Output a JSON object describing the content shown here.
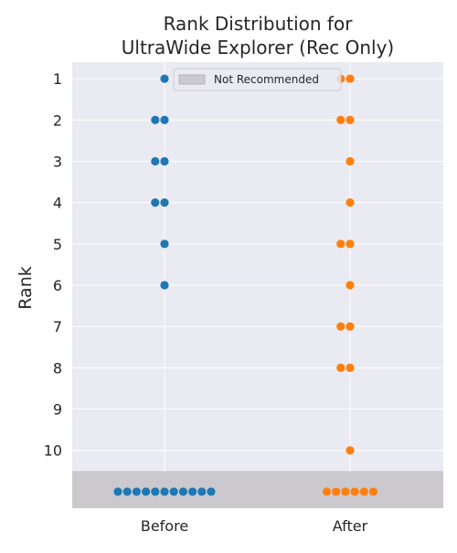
{
  "chart_data": {
    "type": "scatter",
    "style": "swarm",
    "title": [
      "Rank Distribution for",
      "UltraWide Explorer (Rec Only)"
    ],
    "xlabel": "",
    "ylabel": "Rank",
    "categories": [
      "Before",
      "After"
    ],
    "yticks": [
      "1",
      "2",
      "3",
      "4",
      "5",
      "6",
      "7",
      "8",
      "9",
      "10"
    ],
    "ylim": [
      0.6,
      11.4
    ],
    "not_recommended_label": "Not Recommended",
    "legend_position": "top-center",
    "grid": true,
    "series": [
      {
        "category": "Before",
        "color": "#1f77b4",
        "rank_counts": {
          "1": 1,
          "2": 2,
          "3": 2,
          "4": 2,
          "5": 1,
          "6": 1
        },
        "not_recommended_count": 11
      },
      {
        "category": "After",
        "color": "#ff7f0e",
        "rank_counts": {
          "1": 2,
          "2": 2,
          "3": 1,
          "4": 1,
          "5": 2,
          "6": 1,
          "7": 2,
          "8": 2,
          "10": 1
        },
        "not_recommended_count": 6
      }
    ],
    "colors": {
      "background": "#eaeaf2",
      "grid": "#ffffff",
      "band": "#cbc9ce"
    }
  }
}
